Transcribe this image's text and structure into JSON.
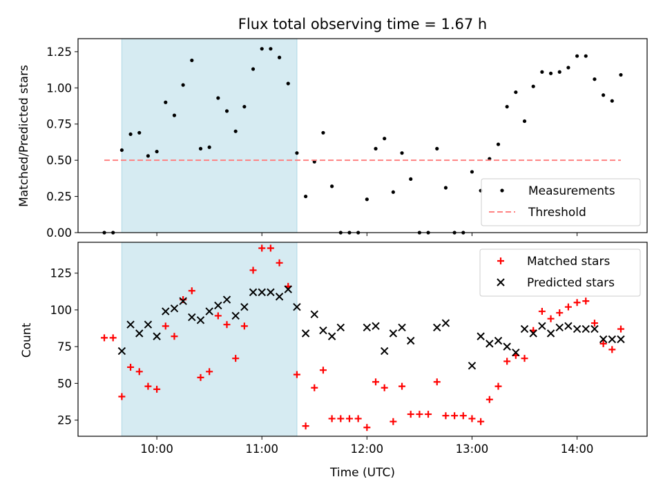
{
  "chart_data": [
    {
      "type": "scatter",
      "title": "Flux total observing time = 1.67 h",
      "xlabel": "",
      "ylabel": "Matched/Predicted stars",
      "ylim": [
        0,
        1.34
      ],
      "yticks": [
        "0.00",
        "0.25",
        "0.50",
        "0.75",
        "1.00",
        "1.25"
      ],
      "shaded_interval": [
        "09:40",
        "11:20"
      ],
      "series": [
        {
          "name": "Measurements",
          "color": "#000000",
          "marker": "dot",
          "x": [
            "09:30",
            "09:35",
            "09:40",
            "09:45",
            "09:50",
            "09:55",
            "10:00",
            "10:05",
            "10:10",
            "10:15",
            "10:20",
            "10:25",
            "10:30",
            "10:35",
            "10:40",
            "10:45",
            "10:50",
            "10:55",
            "11:00",
            "11:05",
            "11:10",
            "11:15",
            "11:20",
            "11:25",
            "11:30",
            "11:35",
            "11:40",
            "11:45",
            "11:50",
            "11:55",
            "12:00",
            "12:05",
            "12:10",
            "12:15",
            "12:20",
            "12:25",
            "12:30",
            "12:35",
            "12:40",
            "12:45",
            "12:50",
            "12:55",
            "13:00",
            "13:05",
            "13:10",
            "13:15",
            "13:20",
            "13:25",
            "13:30",
            "13:35",
            "13:40",
            "13:45",
            "13:50",
            "13:55",
            "14:00",
            "14:05",
            "14:10",
            "14:15",
            "14:20",
            "14:25"
          ],
          "values": [
            0,
            0,
            0.57,
            0.68,
            0.69,
            0.53,
            0.56,
            0.9,
            0.81,
            1.02,
            1.19,
            0.58,
            0.59,
            0.93,
            0.84,
            0.7,
            0.87,
            1.13,
            1.27,
            1.27,
            1.21,
            1.03,
            0.55,
            0.25,
            0.49,
            0.69,
            0.32,
            0,
            0,
            0,
            0.23,
            0.58,
            0.65,
            0.28,
            0.55,
            0.37,
            0,
            0,
            0.58,
            0.31,
            0,
            0,
            0.42,
            0.29,
            0.51,
            0.61,
            0.87,
            0.97,
            0.77,
            1.01,
            1.11,
            1.1,
            1.11,
            1.14,
            1.22,
            1.22,
            1.06,
            0.95,
            0.91,
            1.09
          ]
        },
        {
          "name": "Threshold",
          "color": "#ff8080",
          "style": "dashed",
          "x": [
            "09:30",
            "14:25"
          ],
          "values": [
            0.5,
            0.5
          ]
        }
      ],
      "legend": "bottom-right"
    },
    {
      "type": "scatter",
      "title": "",
      "xlabel": "Time (UTC)",
      "ylabel": "Count",
      "ylim": [
        14,
        146
      ],
      "yticks": [
        "25",
        "50",
        "75",
        "100",
        "125"
      ],
      "xlim": [
        "09:15",
        "14:40"
      ],
      "xticks": [
        "10:00",
        "11:00",
        "12:00",
        "13:00",
        "14:00"
      ],
      "shaded_interval": [
        "09:40",
        "11:20"
      ],
      "series": [
        {
          "name": "Matched stars",
          "color": "#ff0000",
          "marker": "plus",
          "x": [
            "09:30",
            "09:35",
            "09:40",
            "09:45",
            "09:50",
            "09:55",
            "10:00",
            "10:05",
            "10:10",
            "10:15",
            "10:20",
            "10:25",
            "10:30",
            "10:35",
            "10:40",
            "10:45",
            "10:50",
            "10:55",
            "11:00",
            "11:05",
            "11:10",
            "11:15",
            "11:20",
            "11:25",
            "11:30",
            "11:35",
            "11:40",
            "11:45",
            "11:50",
            "11:55",
            "12:00",
            "12:05",
            "12:10",
            "12:15",
            "12:20",
            "12:25",
            "12:30",
            "12:35",
            "12:40",
            "12:45",
            "12:50",
            "12:55",
            "13:00",
            "13:05",
            "13:10",
            "13:15",
            "13:20",
            "13:25",
            "13:30",
            "13:35",
            "13:40",
            "13:45",
            "13:50",
            "13:55",
            "14:00",
            "14:05",
            "14:10",
            "14:15",
            "14:20",
            "14:25"
          ],
          "values": [
            81,
            81,
            41,
            61,
            58,
            48,
            46,
            89,
            82,
            107,
            113,
            54,
            58,
            96,
            90,
            67,
            89,
            127,
            142,
            142,
            132,
            116,
            56,
            21,
            47,
            59,
            26,
            26,
            26,
            26,
            20,
            51,
            47,
            24,
            48,
            29,
            29,
            29,
            51,
            28,
            28,
            28,
            26,
            24,
            39,
            48,
            65,
            69,
            67,
            86,
            99,
            94,
            98,
            102,
            105,
            106,
            91,
            77,
            73,
            87
          ]
        },
        {
          "name": "Predicted stars",
          "color": "#000000",
          "marker": "x",
          "x": [
            "09:40",
            "09:45",
            "09:50",
            "09:55",
            "10:00",
            "10:05",
            "10:10",
            "10:15",
            "10:20",
            "10:25",
            "10:30",
            "10:35",
            "10:40",
            "10:45",
            "10:50",
            "10:55",
            "11:00",
            "11:05",
            "11:10",
            "11:15",
            "11:20",
            "11:25",
            "11:30",
            "11:35",
            "11:40",
            "11:45",
            "12:00",
            "12:05",
            "12:10",
            "12:15",
            "12:20",
            "12:25",
            "12:40",
            "12:45",
            "13:00",
            "13:05",
            "13:10",
            "13:15",
            "13:20",
            "13:25",
            "13:30",
            "13:35",
            "13:40",
            "13:45",
            "13:50",
            "13:55",
            "14:00",
            "14:05",
            "14:10",
            "14:15",
            "14:20",
            "14:25"
          ],
          "values": [
            72,
            90,
            84,
            90,
            82,
            99,
            101,
            106,
            95,
            93,
            99,
            103,
            107,
            96,
            102,
            112,
            112,
            112,
            109,
            114,
            102,
            84,
            97,
            86,
            82,
            88,
            88,
            89,
            72,
            84,
            88,
            79,
            88,
            91,
            62,
            82,
            77,
            79,
            75,
            71,
            87,
            84,
            89,
            84,
            88,
            89,
            87,
            87,
            87,
            80,
            80,
            80
          ]
        }
      ],
      "legend": "top-right"
    }
  ]
}
